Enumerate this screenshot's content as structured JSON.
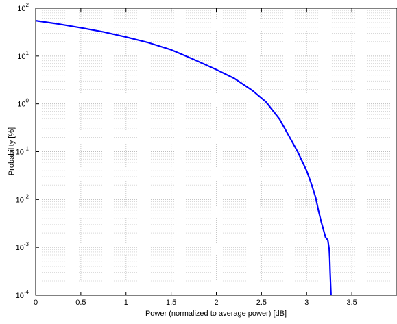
{
  "chart_data": {
    "type": "line",
    "title": "",
    "xlabel": "Power (normalized to average power) [dB]",
    "ylabel": "Probability [%]",
    "xlim": [
      0,
      4
    ],
    "ylim": [
      0.0001,
      100
    ],
    "yscale": "log",
    "grid": true,
    "x_ticks": [
      {
        "value": 0,
        "label": "0"
      },
      {
        "value": 0.5,
        "label": "0.5"
      },
      {
        "value": 1,
        "label": "1"
      },
      {
        "value": 1.5,
        "label": "1.5"
      },
      {
        "value": 2,
        "label": "2"
      },
      {
        "value": 2.5,
        "label": "2.5"
      },
      {
        "value": 3,
        "label": "3"
      },
      {
        "value": 3.5,
        "label": "3.5"
      }
    ],
    "y_ticks": [
      {
        "value": 100,
        "base": "10",
        "exp": "2"
      },
      {
        "value": 10,
        "base": "10",
        "exp": "1"
      },
      {
        "value": 1,
        "base": "10",
        "exp": "0"
      },
      {
        "value": 0.1,
        "base": "10",
        "exp": "-1"
      },
      {
        "value": 0.01,
        "base": "10",
        "exp": "-2"
      },
      {
        "value": 0.001,
        "base": "10",
        "exp": "-3"
      },
      {
        "value": 0.0001,
        "base": "10",
        "exp": "-4"
      }
    ],
    "series": [
      {
        "color": "#0000ff",
        "x": [
          0,
          0.25,
          0.5,
          0.75,
          1.0,
          1.25,
          1.5,
          1.75,
          2.0,
          2.2,
          2.4,
          2.55,
          2.7,
          2.8,
          2.9,
          3.0,
          3.05,
          3.1,
          3.13,
          3.16,
          3.19,
          3.21,
          3.22,
          3.235,
          3.25,
          3.255,
          3.26,
          3.27
        ],
        "y": [
          55,
          47,
          39,
          32,
          25,
          19,
          13.5,
          8.5,
          5.2,
          3.4,
          1.9,
          1.1,
          0.48,
          0.22,
          0.1,
          0.04,
          0.022,
          0.011,
          0.006,
          0.0035,
          0.0022,
          0.0016,
          0.00155,
          0.0014,
          0.0009,
          0.0006,
          0.0003,
          0.0001
        ]
      }
    ]
  }
}
